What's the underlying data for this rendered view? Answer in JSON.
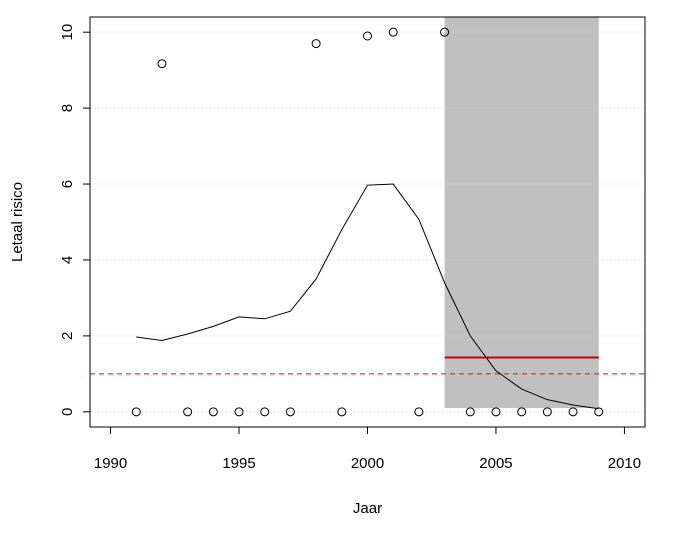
{
  "chart_data": {
    "type": "scatter",
    "x_label": "Jaar",
    "y_label": "Letaal risico",
    "xlim": [
      1989.2,
      2010.8
    ],
    "ylim": [
      -0.4,
      10.4
    ],
    "xticks": [
      1990,
      1995,
      2000,
      2005,
      2010
    ],
    "yticks": [
      0,
      2,
      4,
      6,
      8,
      10
    ],
    "grid": true,
    "points": {
      "x": [
        1991,
        1992,
        1993,
        1994,
        1995,
        1996,
        1997,
        1998,
        1999,
        2000,
        2001,
        2002,
        2003,
        2004,
        2005,
        2006,
        2007,
        2008,
        2009
      ],
      "values": [
        0,
        9.17,
        0,
        0,
        0,
        0,
        0,
        9.7,
        0,
        9.9,
        10,
        0,
        10,
        0,
        0,
        0,
        0,
        0,
        0
      ],
      "color": "#000000"
    },
    "line": {
      "x": [
        1991,
        1992,
        1993,
        1994,
        1995,
        1996,
        1997,
        1998,
        1999,
        2000,
        2001,
        2002,
        2003,
        2004,
        2005,
        2006,
        2007,
        2008,
        2009
      ],
      "values": [
        1.97,
        1.88,
        2.05,
        2.25,
        2.5,
        2.45,
        2.65,
        3.5,
        4.8,
        5.97,
        6.0,
        5.07,
        3.4,
        2.0,
        1.08,
        0.6,
        0.32,
        0.18,
        0.08
      ],
      "color": "#000000"
    },
    "region": {
      "x": [
        2003,
        2009
      ],
      "y": [
        0.1,
        10.4
      ],
      "color": "#c0c0c0"
    },
    "segment": {
      "x": [
        2003,
        2009
      ],
      "value": 1.43,
      "color": "#cc0000"
    },
    "hline": {
      "value": 1,
      "color": "#ff0000"
    }
  }
}
